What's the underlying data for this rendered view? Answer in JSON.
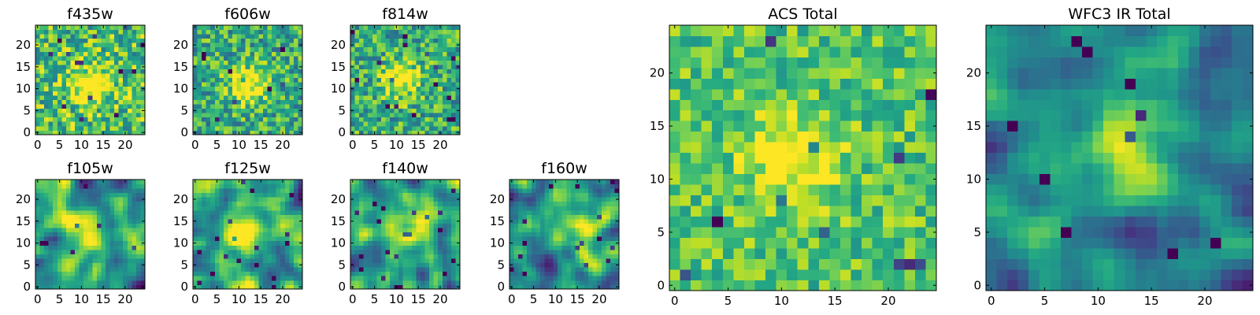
{
  "chart_data": [
    {
      "type": "heatmap",
      "title": "f435w",
      "x_ticks": [
        "0",
        "5",
        "10",
        "15",
        "20"
      ],
      "y_ticks": [
        "0",
        "5",
        "10",
        "15",
        "20"
      ],
      "xlim": [
        -0.5,
        24.5
      ],
      "ylim": [
        -0.5,
        24.5
      ],
      "grid_size": 25,
      "colormap": "viridis",
      "texture": "noise",
      "center": [
        12,
        11
      ],
      "peak": 0.55,
      "noise": 0.6,
      "base": 0.7,
      "seed": 11
    },
    {
      "type": "heatmap",
      "title": "f606w",
      "x_ticks": [
        "0",
        "5",
        "10",
        "15",
        "20"
      ],
      "y_ticks": [
        "0",
        "5",
        "10",
        "15",
        "20"
      ],
      "xlim": [
        -0.5,
        24.5
      ],
      "ylim": [
        -0.5,
        24.5
      ],
      "grid_size": 25,
      "colormap": "viridis",
      "texture": "noise",
      "center": [
        12,
        11
      ],
      "peak": 0.5,
      "noise": 0.55,
      "base": 0.62,
      "seed": 23
    },
    {
      "type": "heatmap",
      "title": "f814w",
      "x_ticks": [
        "0",
        "5",
        "10",
        "15",
        "20"
      ],
      "y_ticks": [
        "0",
        "5",
        "10",
        "15",
        "20"
      ],
      "xlim": [
        -0.5,
        24.5
      ],
      "ylim": [
        -0.5,
        24.5
      ],
      "grid_size": 25,
      "colormap": "viridis",
      "texture": "noise",
      "center": [
        11,
        12
      ],
      "peak": 0.45,
      "noise": 0.55,
      "base": 0.62,
      "seed": 37
    },
    {
      "type": "heatmap",
      "title": "f105w",
      "x_ticks": [
        "0",
        "5",
        "10",
        "15",
        "20"
      ],
      "y_ticks": [
        "0",
        "5",
        "10",
        "15",
        "20"
      ],
      "xlim": [
        -0.5,
        24.5
      ],
      "ylim": [
        -0.5,
        24.5
      ],
      "grid_size": 25,
      "colormap": "viridis",
      "texture": "smooth",
      "center": [
        12,
        12
      ],
      "peak": 0.5,
      "noise": 0.45,
      "base": 0.55,
      "seed": 41
    },
    {
      "type": "heatmap",
      "title": "f125w",
      "x_ticks": [
        "0",
        "5",
        "10",
        "15",
        "20"
      ],
      "y_ticks": [
        "0",
        "5",
        "10",
        "15",
        "20"
      ],
      "xlim": [
        -0.5,
        24.5
      ],
      "ylim": [
        -0.5,
        24.5
      ],
      "grid_size": 25,
      "colormap": "viridis",
      "texture": "smooth",
      "center": [
        11,
        12
      ],
      "peak": 0.45,
      "noise": 0.45,
      "base": 0.6,
      "seed": 53
    },
    {
      "type": "heatmap",
      "title": "f140w",
      "x_ticks": [
        "0",
        "5",
        "10",
        "15",
        "20"
      ],
      "y_ticks": [
        "0",
        "5",
        "10",
        "15",
        "20"
      ],
      "xlim": [
        -0.5,
        24.5
      ],
      "ylim": [
        -0.5,
        24.5
      ],
      "grid_size": 25,
      "colormap": "viridis",
      "texture": "smooth",
      "center": [
        14,
        16
      ],
      "peak": 0.45,
      "noise": 0.45,
      "base": 0.55,
      "seed": 67
    },
    {
      "type": "heatmap",
      "title": "f160w",
      "x_ticks": [
        "0",
        "5",
        "10",
        "15",
        "20"
      ],
      "y_ticks": [
        "0",
        "5",
        "10",
        "15",
        "20"
      ],
      "xlim": [
        -0.5,
        24.5
      ],
      "ylim": [
        -0.5,
        24.5
      ],
      "grid_size": 25,
      "colormap": "viridis",
      "texture": "smooth",
      "center": [
        14,
        14
      ],
      "peak": 0.45,
      "noise": 0.45,
      "base": 0.52,
      "seed": 79
    },
    {
      "type": "heatmap",
      "title": "ACS Total",
      "x_ticks": [
        "0",
        "5",
        "10",
        "15",
        "20"
      ],
      "y_ticks": [
        "0",
        "5",
        "10",
        "15",
        "20"
      ],
      "xlim": [
        -0.5,
        24.5
      ],
      "ylim": [
        -0.5,
        24.5
      ],
      "grid_size": 25,
      "colormap": "viridis",
      "texture": "noise",
      "center": [
        11,
        12
      ],
      "peak": 0.35,
      "noise": 0.4,
      "base": 0.72,
      "seed": 97
    },
    {
      "type": "heatmap",
      "title": "WFC3 IR Total",
      "x_ticks": [
        "0",
        "5",
        "10",
        "15",
        "20"
      ],
      "y_ticks": [
        "0",
        "5",
        "10",
        "15",
        "20"
      ],
      "xlim": [
        -0.5,
        24.5
      ],
      "ylim": [
        -0.5,
        24.5
      ],
      "grid_size": 25,
      "colormap": "viridis",
      "texture": "smooth",
      "center": [
        12,
        12
      ],
      "peak": 0.55,
      "noise": 0.35,
      "base": 0.45,
      "seed": 131
    }
  ]
}
